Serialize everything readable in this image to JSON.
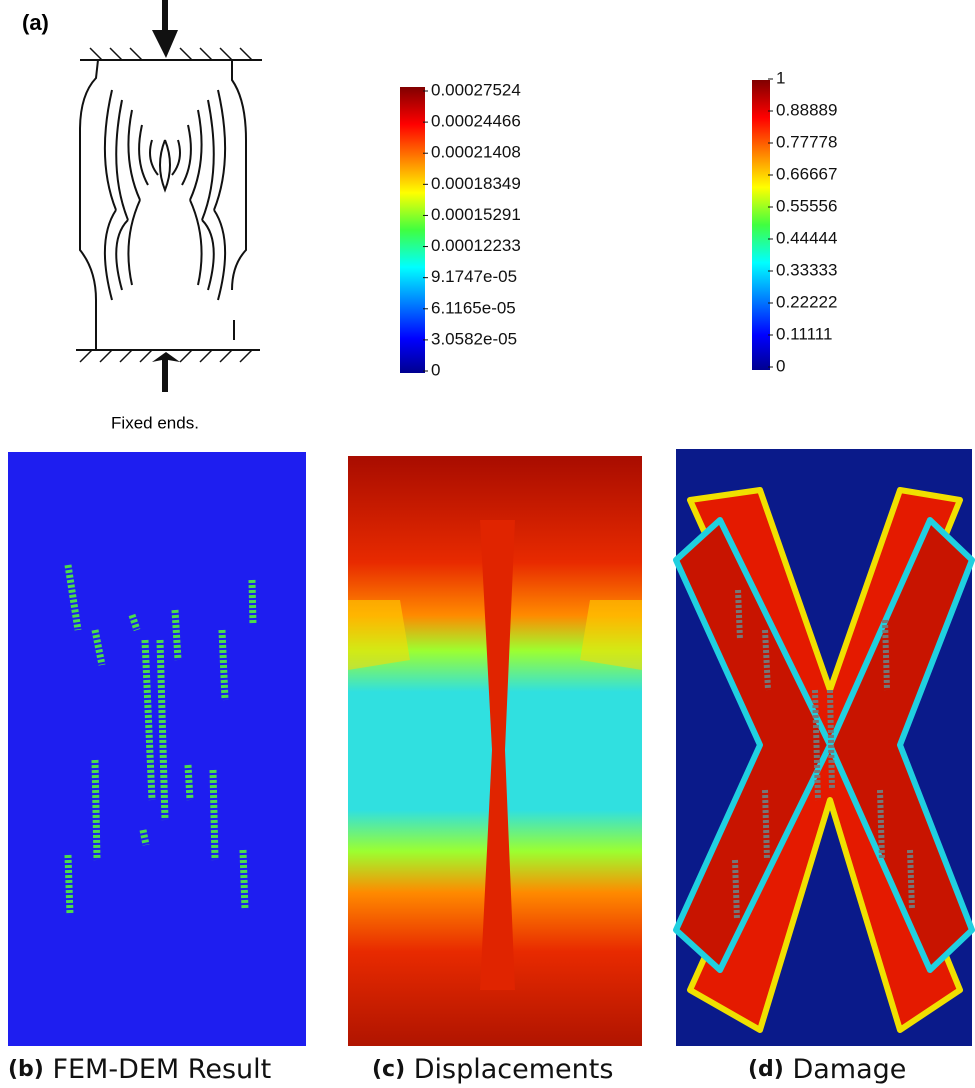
{
  "panel_a": {
    "label": "(a)",
    "caption": "Fixed ends."
  },
  "colorbar_displacement": {
    "labels": [
      "0.00027524",
      "0.00024466",
      "0.00021408",
      "0.00018349",
      "0.00015291",
      "0.00012233",
      "9.1747e-05",
      "6.1165e-05",
      "3.0582e-05",
      "0"
    ]
  },
  "colorbar_damage": {
    "labels": [
      "1",
      "0.88889",
      "0.77778",
      "0.66667",
      "0.55556",
      "0.44444",
      "0.33333",
      "0.22222",
      "0.11111",
      "0"
    ]
  },
  "panels": [
    {
      "label": "(b)",
      "caption": "FEM-DEM Result"
    },
    {
      "label": "(c)",
      "caption": "Displacements"
    },
    {
      "label": "(d)",
      "caption": "Damage"
    }
  ]
}
